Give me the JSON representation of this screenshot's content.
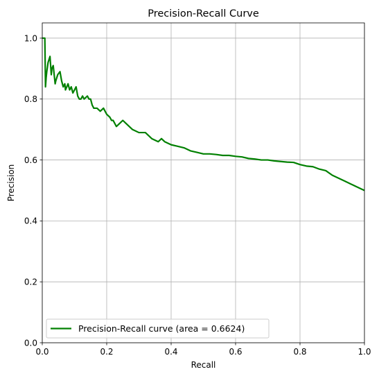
{
  "chart_data": {
    "type": "line",
    "title": "Precision-Recall Curve",
    "xlabel": "Recall",
    "ylabel": "Precision",
    "xlim": [
      0.0,
      1.0
    ],
    "ylim": [
      0.0,
      1.05
    ],
    "x_ticks": [
      "0.0",
      "0.2",
      "0.4",
      "0.6",
      "0.8",
      "1.0"
    ],
    "y_ticks": [
      "0.0",
      "0.2",
      "0.4",
      "0.6",
      "0.8",
      "1.0"
    ],
    "grid": true,
    "legend_position": "lower-left",
    "series": [
      {
        "name": "Precision-Recall curve (area = 0.6624)",
        "color": "#008000",
        "x": [
          0.0,
          0.005,
          0.008,
          0.01,
          0.012,
          0.014,
          0.018,
          0.024,
          0.028,
          0.03,
          0.034,
          0.04,
          0.042,
          0.048,
          0.055,
          0.06,
          0.065,
          0.07,
          0.072,
          0.076,
          0.08,
          0.085,
          0.09,
          0.095,
          0.1,
          0.105,
          0.11,
          0.115,
          0.12,
          0.125,
          0.13,
          0.14,
          0.145,
          0.15,
          0.155,
          0.16,
          0.165,
          0.17,
          0.18,
          0.19,
          0.2,
          0.21,
          0.215,
          0.22,
          0.23,
          0.24,
          0.25,
          0.26,
          0.27,
          0.28,
          0.3,
          0.32,
          0.34,
          0.36,
          0.37,
          0.38,
          0.4,
          0.42,
          0.44,
          0.46,
          0.48,
          0.5,
          0.52,
          0.54,
          0.56,
          0.58,
          0.6,
          0.62,
          0.64,
          0.66,
          0.68,
          0.7,
          0.72,
          0.74,
          0.76,
          0.78,
          0.8,
          0.82,
          0.84,
          0.86,
          0.88,
          0.9,
          0.92,
          0.94,
          0.96,
          0.98,
          1.0
        ],
        "y": [
          1.0,
          1.0,
          1.0,
          0.84,
          0.87,
          0.89,
          0.92,
          0.94,
          0.88,
          0.9,
          0.91,
          0.85,
          0.86,
          0.88,
          0.89,
          0.86,
          0.84,
          0.85,
          0.83,
          0.84,
          0.85,
          0.83,
          0.84,
          0.82,
          0.83,
          0.84,
          0.81,
          0.8,
          0.8,
          0.81,
          0.8,
          0.81,
          0.8,
          0.8,
          0.78,
          0.77,
          0.77,
          0.77,
          0.76,
          0.77,
          0.75,
          0.74,
          0.73,
          0.73,
          0.71,
          0.72,
          0.73,
          0.72,
          0.71,
          0.7,
          0.69,
          0.69,
          0.67,
          0.66,
          0.67,
          0.66,
          0.65,
          0.645,
          0.64,
          0.63,
          0.625,
          0.62,
          0.62,
          0.618,
          0.615,
          0.615,
          0.612,
          0.61,
          0.605,
          0.603,
          0.6,
          0.6,
          0.597,
          0.595,
          0.593,
          0.592,
          0.585,
          0.58,
          0.578,
          0.57,
          0.565,
          0.55,
          0.54,
          0.53,
          0.52,
          0.51,
          0.5
        ]
      }
    ]
  }
}
